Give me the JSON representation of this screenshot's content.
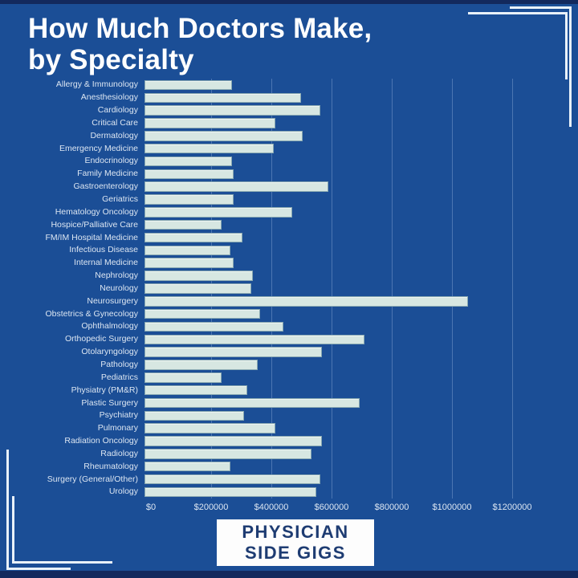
{
  "page": {
    "title_line1": "How Much Doctors Make,",
    "title_line2": "by Specialty"
  },
  "badge": {
    "line1": "PHYSICIAN",
    "line2": "SIDE GIGS"
  },
  "colors": {
    "background": "#1b4e96",
    "edge_strip": "#13295d",
    "bar_fill": "#d7e7e2",
    "title_text": "#ffffff",
    "label_text": "#dce6f2",
    "gridline": "#96b4dc",
    "badge_bg": "#fdfdfd",
    "badge_text": "#1e3c72",
    "corner_lines": "#e9f1f9"
  },
  "chart_data": {
    "type": "bar",
    "orientation": "horizontal",
    "title": "How Much Doctors Make, by Specialty",
    "xlabel": "",
    "ylabel": "",
    "xlim": [
      0,
      1200000
    ],
    "grid": true,
    "legend": false,
    "x_tick_values": [
      0,
      200000,
      400000,
      600000,
      800000,
      1000000,
      1200000
    ],
    "x_tick_labels": [
      "$0",
      "$200000",
      "$400000",
      "$600000",
      "$800000",
      "$1000000",
      "$1200000"
    ],
    "categories": [
      "Allergy & Immunology",
      "Anesthesiology",
      "Cardiology",
      "Critical Care",
      "Dermatology",
      "Emergency Medicine",
      "Endocrinology",
      "Family Medicine",
      "Gastroenterology",
      "Geriatrics",
      "Hematology Oncology",
      "Hospice/Palliative Care",
      "FM/IM Hospital Medicine",
      "Infectious Disease",
      "Internal Medicine",
      "Nephrology",
      "Neurology",
      "Neurosurgery",
      "Obstetrics & Gynecology",
      "Ophthalmology",
      "Orthopedic Surgery",
      "Otolaryngology",
      "Pathology",
      "Pediatrics",
      "Physiatry (PM&R)",
      "Plastic Surgery",
      "Psychiatry",
      "Pulmonary",
      "Radiation Oncology",
      "Radiology",
      "Rheumatology",
      "Surgery (General/Other)",
      "Urology"
    ],
    "values": [
      290000,
      520000,
      585000,
      435000,
      525000,
      430000,
      290000,
      295000,
      610000,
      295000,
      490000,
      255000,
      325000,
      285000,
      295000,
      360000,
      355000,
      1075000,
      385000,
      460000,
      730000,
      590000,
      375000,
      255000,
      340000,
      715000,
      330000,
      435000,
      590000,
      555000,
      285000,
      585000,
      570000
    ]
  }
}
